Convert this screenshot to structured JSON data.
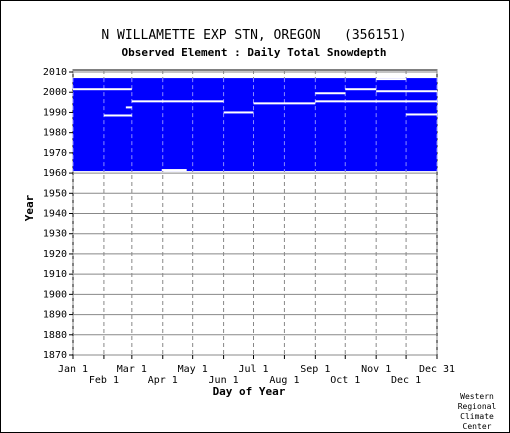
{
  "chart_data": {
    "type": "heatmap",
    "title": "N WILLAMETTE EXP STN, OREGON   (356151)",
    "subtitle": "Observed Element : Daily Total Snowdepth",
    "xlabel": "Day of Year",
    "ylabel": "Year",
    "xlim": [
      1,
      366
    ],
    "ylim": [
      1870,
      2011
    ],
    "y_ticks": [
      1870,
      1880,
      1890,
      1900,
      1910,
      1920,
      1930,
      1940,
      1950,
      1960,
      1970,
      1980,
      1990,
      2000,
      2010
    ],
    "x_ticks_upper": [
      {
        "label": "Jan 1",
        "day": 1
      },
      {
        "label": "Mar 1",
        "day": 60
      },
      {
        "label": "May 1",
        "day": 121
      },
      {
        "label": "Jul 1",
        "day": 182
      },
      {
        "label": "Sep 1",
        "day": 244
      },
      {
        "label": "Nov 1",
        "day": 305
      },
      {
        "label": "Dec 31",
        "day": 366
      }
    ],
    "x_ticks_lower": [
      {
        "label": "Feb 1",
        "day": 32
      },
      {
        "label": "Apr 1",
        "day": 91
      },
      {
        "label": "Jun 1",
        "day": 152
      },
      {
        "label": "Aug 1",
        "day": 213
      },
      {
        "label": "Oct 1",
        "day": 274
      },
      {
        "label": "Dec 1",
        "day": 335
      }
    ],
    "grid": true,
    "data_color": "#0000ff",
    "data_block": {
      "day_start": 1,
      "day_end": 366,
      "year_start": 1961,
      "year_end": 2007
    },
    "missing_gaps": [
      {
        "day_start": 1,
        "day_end": 60,
        "year": 2001.5
      },
      {
        "day_start": 32,
        "day_end": 60,
        "year": 1988.5
      },
      {
        "day_start": 54,
        "day_end": 60,
        "year": 1992.5
      },
      {
        "day_start": 60,
        "day_end": 121,
        "year": 1995.5
      },
      {
        "day_start": 121,
        "day_end": 152,
        "year": 1995.5
      },
      {
        "day_start": 152,
        "day_end": 182,
        "year": 1990
      },
      {
        "day_start": 182,
        "day_end": 244,
        "year": 1994.5
      },
      {
        "day_start": 244,
        "day_end": 274,
        "year": 1995.5
      },
      {
        "day_start": 244,
        "day_end": 274,
        "year": 1999.5
      },
      {
        "day_start": 274,
        "day_end": 305,
        "year": 2001.5
      },
      {
        "day_start": 305,
        "day_end": 366,
        "year": 2000.5
      },
      {
        "day_start": 274,
        "day_end": 366,
        "year": 1995.5
      },
      {
        "day_start": 335,
        "day_end": 366,
        "year": 1989
      },
      {
        "day_start": 305,
        "day_end": 335,
        "year": 2006.5
      },
      {
        "day_start": 90,
        "day_end": 115,
        "year": 1961.5
      }
    ],
    "credit": [
      "Western",
      "Regional",
      "Climate",
      "Center"
    ]
  }
}
